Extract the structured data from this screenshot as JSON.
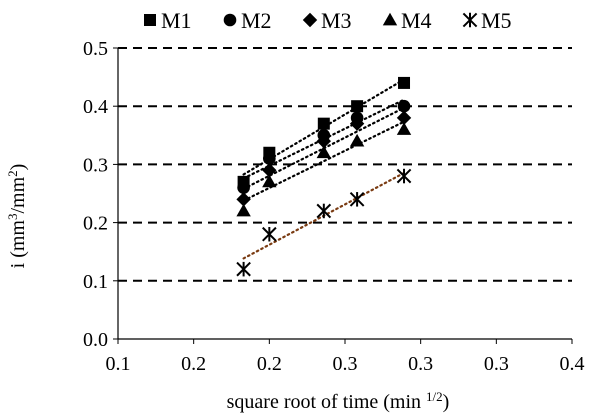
{
  "chart_data": {
    "type": "scatter",
    "title": "",
    "xlabel": "square root of time (min",
    "xlabel_sup": "1/2",
    "xlabel_close": ")",
    "ylabel_main": "i  (mm",
    "ylabel_sup1": "3",
    "ylabel_mid": "/mm",
    "ylabel_sup2": "2",
    "ylabel_close": ")",
    "xlim": [
      0.1,
      0.4
    ],
    "ylim": [
      0.0,
      0.5
    ],
    "x_ticks": [
      0.1,
      0.15,
      0.2,
      0.25,
      0.3,
      0.35,
      0.4
    ],
    "x_tick_labels": [
      "0.1",
      "0.2",
      "0.2",
      "0.3",
      "0.3",
      "0.3",
      "0.4"
    ],
    "y_ticks": [
      0.0,
      0.1,
      0.2,
      0.3,
      0.4,
      0.5
    ],
    "y_tick_labels": [
      "0.0",
      "0.1",
      "0.2",
      "0.3",
      "0.4",
      "0.5"
    ],
    "grid": "horizontal dashed",
    "legend_position": "top",
    "trendlines": "dotted linear fit per series",
    "x": [
      0.183,
      0.2,
      0.236,
      0.258,
      0.289
    ],
    "series": [
      {
        "name": "M1",
        "marker": "square",
        "color": "#000000",
        "trend_color": "#000000",
        "values": [
          0.27,
          0.32,
          0.37,
          0.4,
          0.44
        ]
      },
      {
        "name": "M2",
        "marker": "circle",
        "color": "#000000",
        "trend_color": "#000000",
        "values": [
          0.26,
          0.31,
          0.35,
          0.38,
          0.4
        ]
      },
      {
        "name": "M3",
        "marker": "diamond",
        "color": "#000000",
        "trend_color": "#000000",
        "values": [
          0.24,
          0.29,
          0.34,
          0.37,
          0.38
        ]
      },
      {
        "name": "M4",
        "marker": "triangle",
        "color": "#000000",
        "trend_color": "#000000",
        "values": [
          0.22,
          0.27,
          0.32,
          0.34,
          0.36
        ]
      },
      {
        "name": "M5",
        "marker": "asterisk",
        "color": "#000000",
        "trend_color": "#7a3b12",
        "values": [
          0.12,
          0.18,
          0.22,
          0.24,
          0.28
        ]
      }
    ]
  }
}
